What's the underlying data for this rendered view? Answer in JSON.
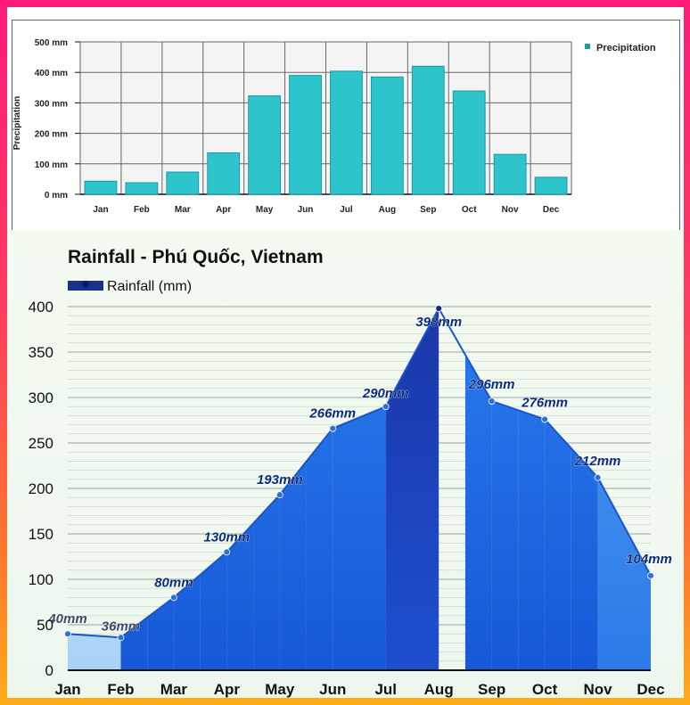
{
  "chart_data": [
    {
      "type": "bar",
      "title": "",
      "xlabel": "",
      "ylabel": "Precipitation",
      "categories": [
        "Jan",
        "Feb",
        "Mar",
        "Apr",
        "May",
        "Jun",
        "Jul",
        "Aug",
        "Sep",
        "Oct",
        "Nov",
        "Dec"
      ],
      "series": [
        {
          "name": "Precipitation",
          "values": [
            43,
            38,
            73,
            136,
            323,
            390,
            404,
            385,
            420,
            339,
            131,
            56
          ]
        }
      ],
      "ylim": [
        0,
        500
      ],
      "yticks": [
        0,
        100,
        200,
        300,
        400,
        500
      ],
      "ytick_labels": [
        "0 mm",
        "100 mm",
        "200 mm",
        "300 mm",
        "400 mm",
        "500 mm"
      ],
      "grid": true,
      "legend": "right",
      "colors": {
        "bar": "#2ec4cc",
        "bar_edge": "#1a9aa3",
        "legend_marker": "#1a9aa3"
      }
    },
    {
      "type": "area",
      "title": "Rainfall - Phú Quốc, Vietnam",
      "xlabel": "",
      "ylabel": "",
      "categories": [
        "Jan",
        "Feb",
        "Mar",
        "Apr",
        "May",
        "Jun",
        "Jul",
        "Aug",
        "Sep",
        "Oct",
        "Nov",
        "Dec"
      ],
      "series": [
        {
          "name": "Rainfall (mm)",
          "values": [
            40,
            36,
            80,
            130,
            193,
            266,
            290,
            398,
            296,
            276,
            212,
            104
          ]
        }
      ],
      "data_labels": [
        "40mm",
        "36mm",
        "80mm",
        "130mm",
        "193mm",
        "266mm",
        "290mm",
        "398mm",
        "296mm",
        "276mm",
        "212mm",
        "104mm"
      ],
      "ylim": [
        0,
        400
      ],
      "yticks": [
        0,
        50,
        100,
        150,
        200,
        250,
        300,
        350,
        400
      ],
      "grid": true,
      "legend": "top-left",
      "colors": {
        "fill": "#1f6fe8",
        "fill_peak": "#1b3fb0",
        "fill_dry": "#bfe0f8",
        "line": "#1f64d8",
        "label": "#0a2a7a",
        "legend": "#1b2f8f"
      }
    }
  ]
}
